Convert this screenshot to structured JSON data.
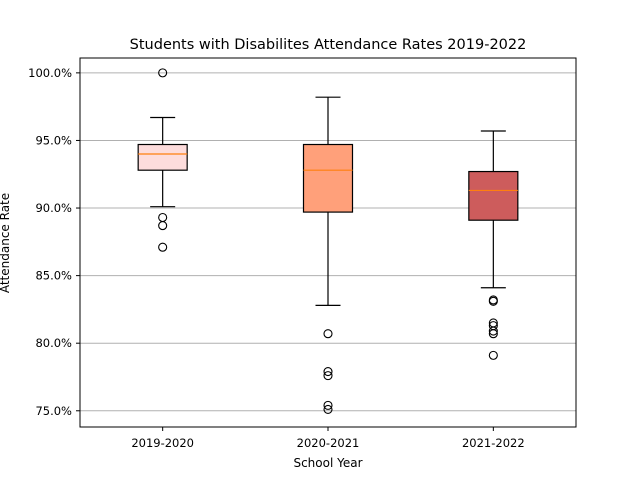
{
  "chart_data": {
    "type": "box",
    "title": "Students with Disabilites Attendance Rates 2019-2022",
    "xlabel": "School Year",
    "ylabel": "Attendance Rate",
    "ylim": [
      0.738,
      1.011
    ],
    "yticks": [
      0.75,
      0.8,
      0.85,
      0.9,
      0.95,
      1.0
    ],
    "ytick_labels": [
      "75.0%",
      "80.0%",
      "85.0%",
      "90.0%",
      "95.0%",
      "100.0%"
    ],
    "grid": "horizontal",
    "categories": [
      "2019-2020",
      "2020-2021",
      "2021-2022"
    ],
    "boxes": [
      {
        "category": "2019-2020",
        "whisker_low": 0.901,
        "q1": 0.928,
        "median": 0.94,
        "q3": 0.947,
        "whisker_high": 0.967,
        "outliers": [
          1.0,
          0.893,
          0.887,
          0.871
        ],
        "fill": "#fddcdc",
        "median_color": "#ff7f0e"
      },
      {
        "category": "2020-2021",
        "whisker_low": 0.828,
        "q1": 0.897,
        "median": 0.928,
        "q3": 0.947,
        "whisker_high": 0.982,
        "outliers": [
          0.807,
          0.779,
          0.776,
          0.754,
          0.751
        ],
        "fill": "#ffa07a",
        "median_color": "#ff7f0e"
      },
      {
        "category": "2021-2022",
        "whisker_low": 0.841,
        "q1": 0.891,
        "median": 0.913,
        "q3": 0.927,
        "whisker_high": 0.957,
        "outliers": [
          0.832,
          0.831,
          0.815,
          0.813,
          0.809,
          0.807,
          0.791
        ],
        "fill": "#cd5c5c",
        "median_color": "#ff7f0e"
      }
    ]
  }
}
